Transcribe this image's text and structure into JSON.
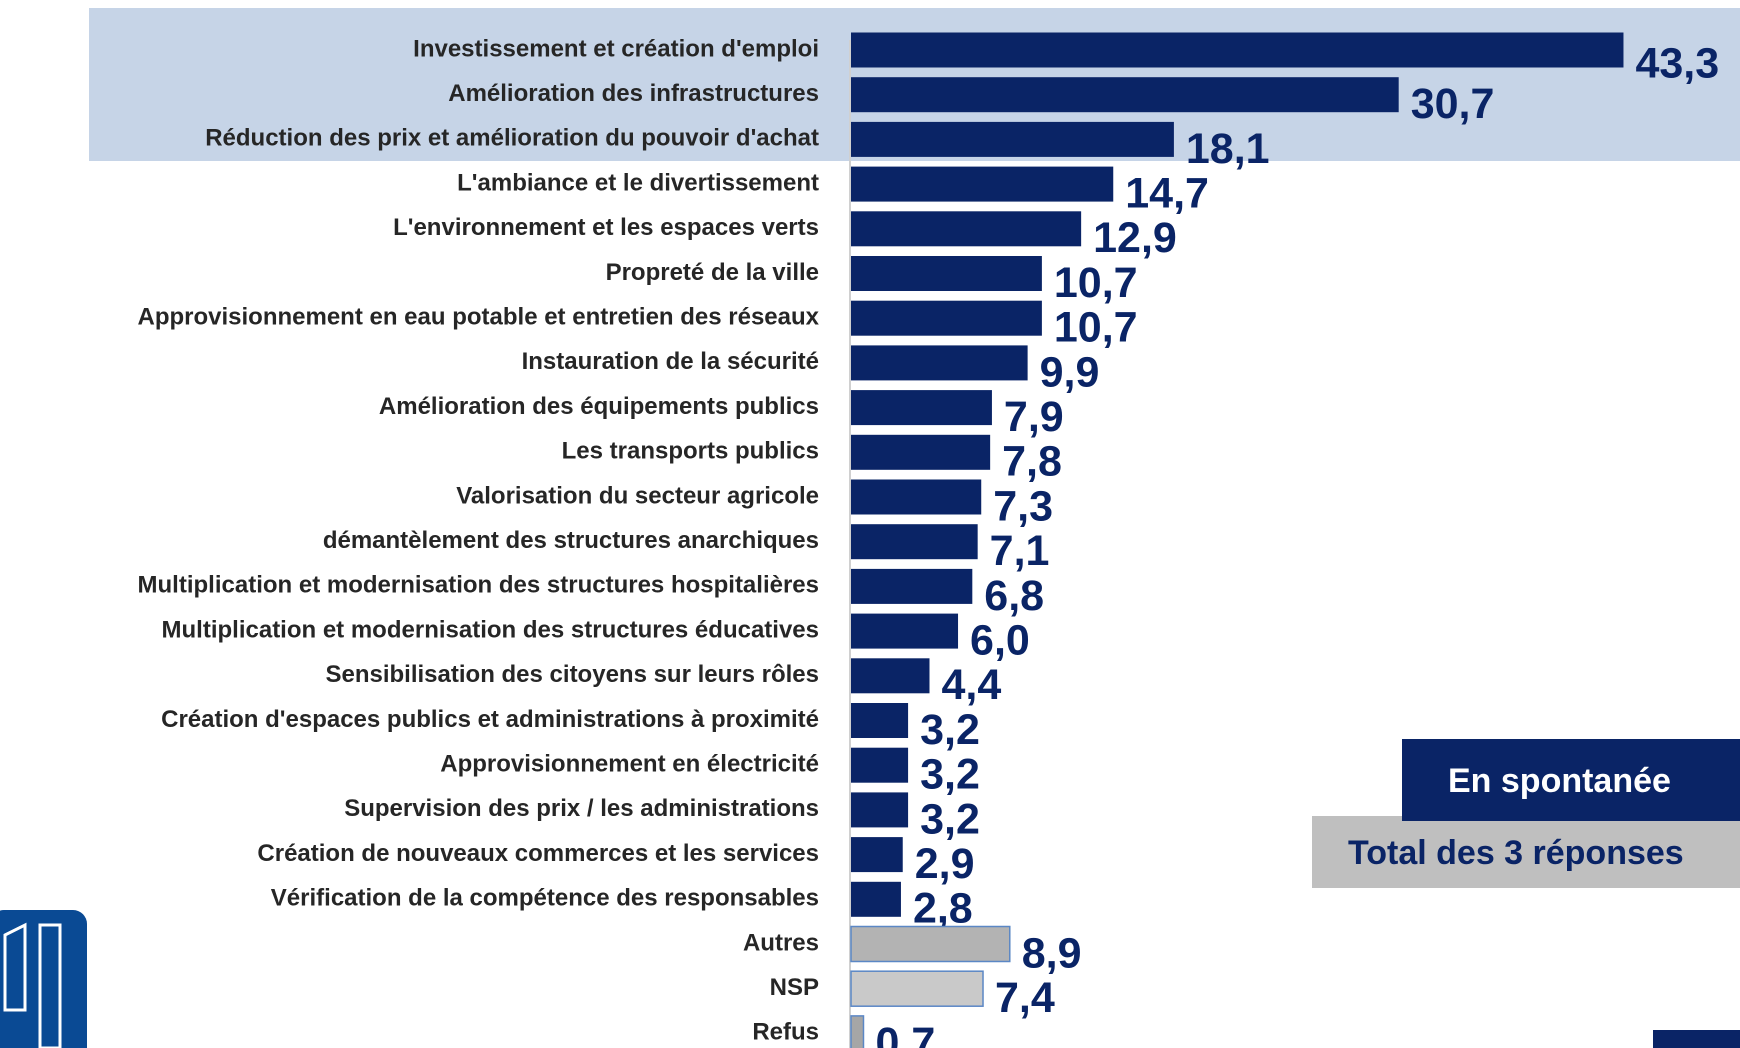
{
  "chart_data": {
    "type": "hbar",
    "categories": [
      "Investissement et création d'emploi",
      "Amélioration des infrastructures",
      "Réduction des prix et amélioration du pouvoir d'achat",
      "L'ambiance et le divertissement",
      "L'environnement et les espaces verts",
      "Propreté de la ville",
      "Approvisionnement en eau potable et entretien des réseaux",
      "Instauration de la sécurité",
      "Amélioration des équipements publics",
      "Les transports publics",
      "Valorisation du secteur agricole",
      "démantèlement des structures anarchiques",
      "Multiplication et modernisation des structures hospitalières",
      "Multiplication et modernisation des structures éducatives",
      "Sensibilisation des citoyens sur leurs rôles",
      "Création d'espaces publics et administrations à proximité",
      "Approvisionnement en électricité",
      "Supervision des prix / les administrations",
      "Création de nouveaux commerces et les services",
      "Vérification de la compétence des responsables",
      "Autres",
      "NSP",
      "Refus"
    ],
    "values": [
      43.3,
      30.7,
      18.1,
      14.7,
      12.9,
      10.7,
      10.7,
      9.9,
      7.9,
      7.8,
      7.3,
      7.1,
      6.8,
      6.0,
      4.4,
      3.2,
      3.2,
      3.2,
      2.9,
      2.8,
      8.9,
      7.4,
      0.7
    ],
    "value_labels": [
      "43,3",
      "30,7",
      "18,1",
      "14,7",
      "12,9",
      "10,7",
      "10,7",
      "9,9",
      "7,9",
      "7,8",
      "7,3",
      "7,1",
      "6,8",
      "6,0",
      "4,4",
      "3,2",
      "3,2",
      "3,2",
      "2,9",
      "2,8",
      "8,9",
      "7,4",
      "0,7"
    ],
    "colors": [
      "#0a2466",
      "#0a2466",
      "#0a2466",
      "#0a2466",
      "#0a2466",
      "#0a2466",
      "#0a2466",
      "#0a2466",
      "#0a2466",
      "#0a2466",
      "#0a2466",
      "#0a2466",
      "#0a2466",
      "#0a2466",
      "#0a2466",
      "#0a2466",
      "#0a2466",
      "#0a2466",
      "#0a2466",
      "#0a2466",
      "#b3b3b3",
      "#c9c9c9",
      "#a6a6a6"
    ],
    "annotations": [
      "En spontanée",
      "Total des 3 réponses"
    ]
  }
}
